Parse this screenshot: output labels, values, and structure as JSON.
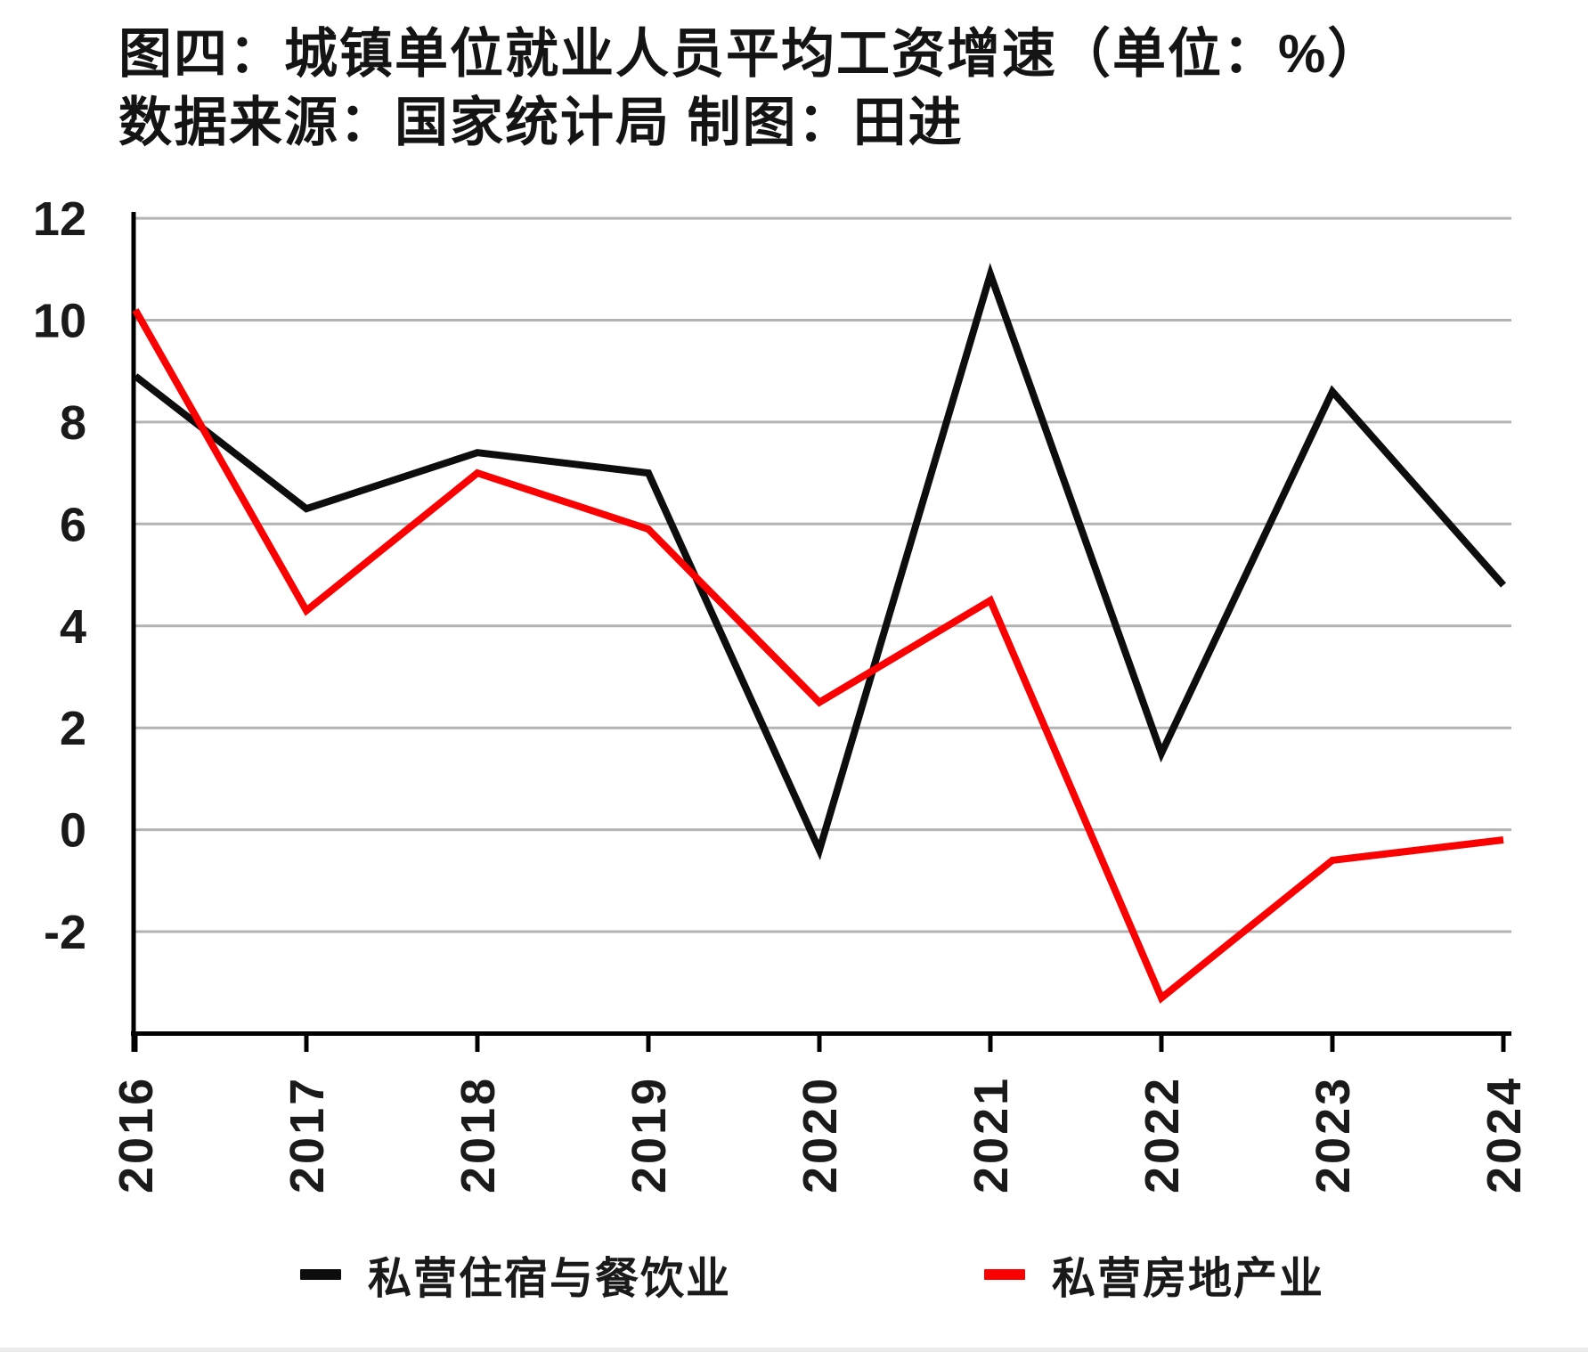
{
  "title": {
    "line1": "图四：城镇单位就业人员平均工资增速（单位：%）",
    "line2": "数据来源：国家统计局 制图：田进"
  },
  "chart_data": {
    "type": "line",
    "title": "图四：城镇单位就业人员平均工资增速（单位：%）",
    "source_note": "数据来源：国家统计局 制图：田进",
    "x": [
      2016,
      2017,
      2018,
      2019,
      2020,
      2021,
      2022,
      2023,
      2024
    ],
    "series": [
      {
        "name": "私营住宿与餐饮业",
        "color": "#0d0d0d",
        "values": [
          8.9,
          6.3,
          7.4,
          7.0,
          -0.4,
          10.9,
          1.5,
          8.6,
          4.8
        ]
      },
      {
        "name": "私营房地产业",
        "color": "#fa0000",
        "values": [
          10.2,
          4.3,
          7.0,
          5.9,
          2.5,
          4.5,
          -3.3,
          -0.6,
          -0.2
        ]
      }
    ],
    "xlabel": "",
    "ylabel": "",
    "unit": "%",
    "ylim": [
      -4,
      12
    ],
    "yticks": [
      12,
      10,
      8,
      6,
      4,
      2,
      0,
      -2
    ],
    "grid": true,
    "gridline_color": "#b3b3b3",
    "axis_color": "#000000",
    "tick_label_color": "#1a1a1a",
    "legend_position": "bottom"
  }
}
